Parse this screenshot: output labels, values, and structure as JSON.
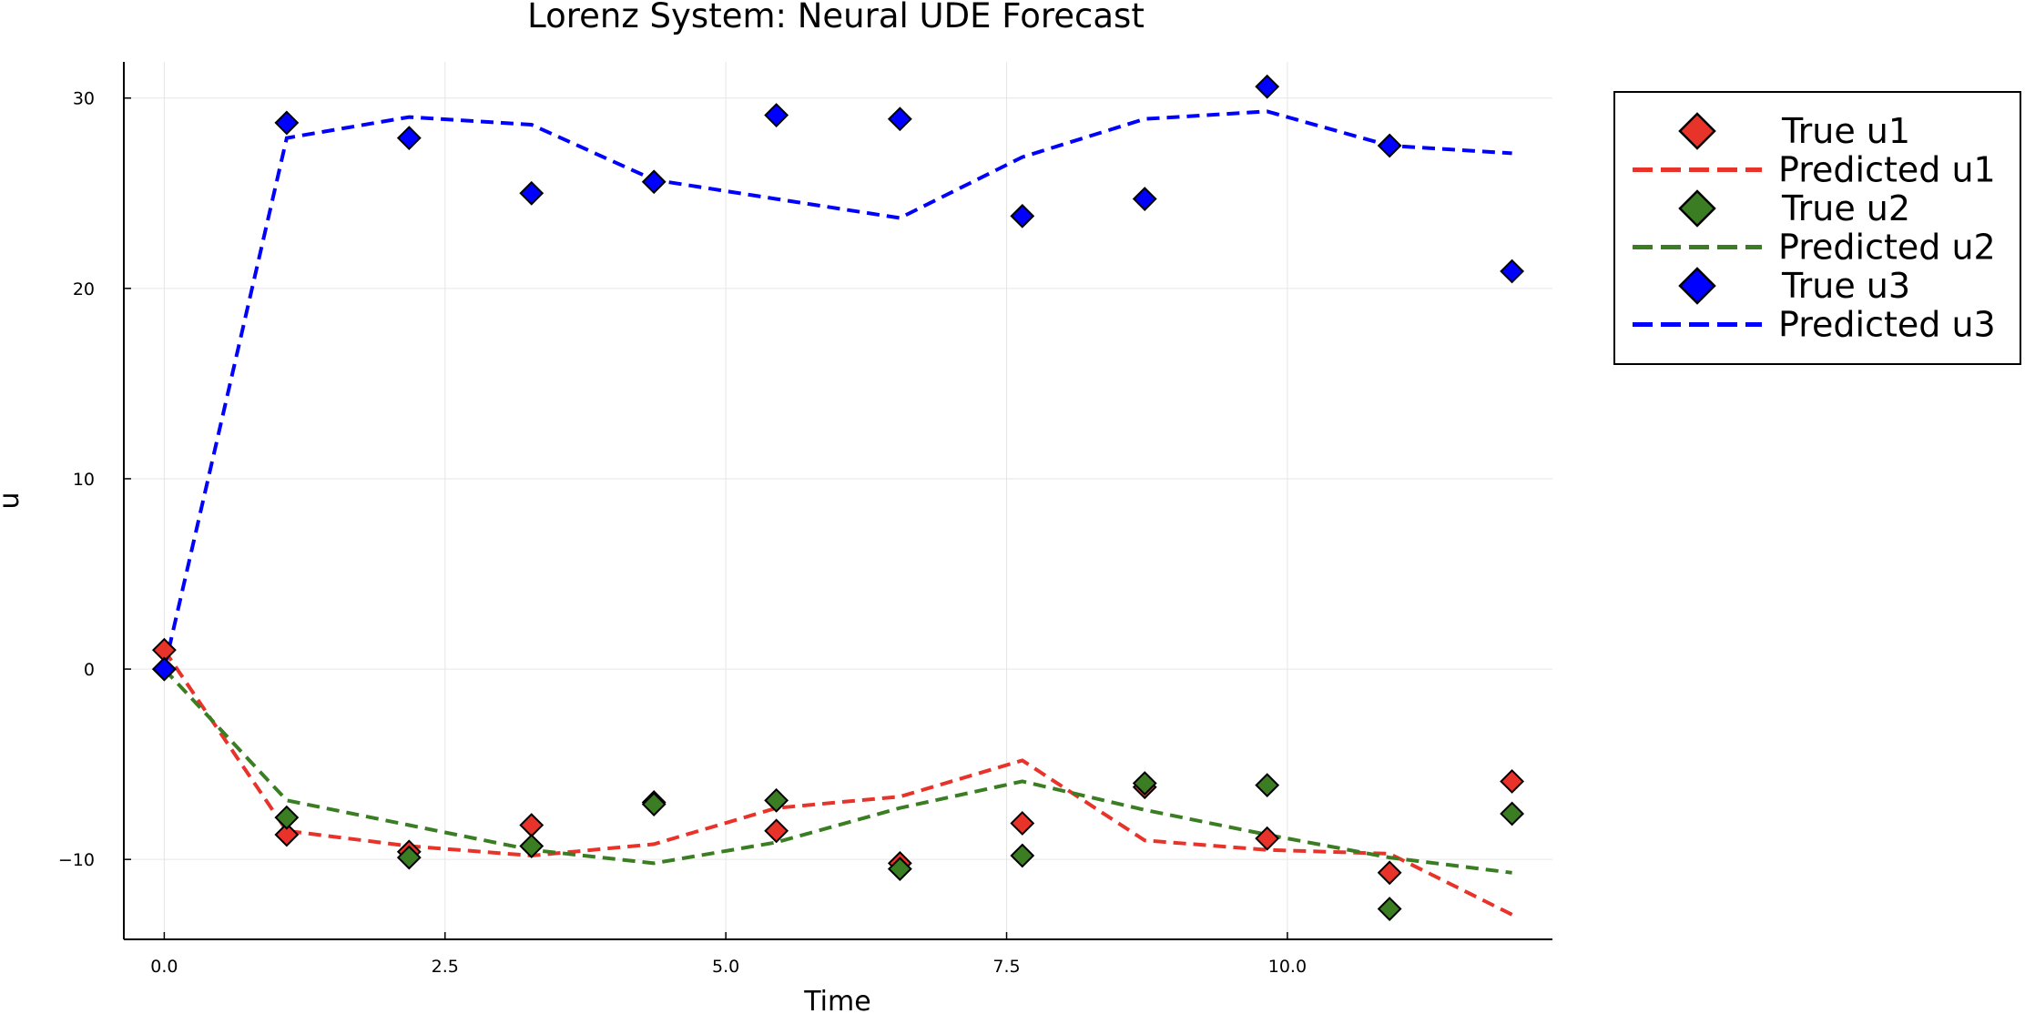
{
  "chart_data": {
    "type": "line",
    "title": "Lorenz System: Neural UDE Forecast",
    "xlabel": "Time",
    "ylabel": "u",
    "xlim": [
      -0.36,
      12.36
    ],
    "ylim": [
      -14.2,
      31.9
    ],
    "xticks": [
      0.0,
      2.5,
      5.0,
      7.5,
      10.0
    ],
    "xtick_labels": [
      "0.0",
      "2.5",
      "5.0",
      "7.5",
      "10.0"
    ],
    "yticks": [
      -10,
      0,
      10,
      20,
      30
    ],
    "ytick_labels": [
      "−10",
      "0",
      "10",
      "20",
      "30"
    ],
    "grid": true,
    "legend_position": "outer-top-right",
    "x": [
      0.0,
      1.09,
      2.18,
      3.27,
      4.36,
      5.45,
      6.55,
      7.64,
      8.73,
      9.82,
      10.91,
      12.0
    ],
    "series": [
      {
        "name": "True u1",
        "style": "markers",
        "color": "#e8332a",
        "values": [
          1.0,
          -8.7,
          -9.6,
          -8.2,
          -7.0,
          -8.5,
          -10.2,
          -8.1,
          -6.2,
          -8.9,
          -10.7,
          -5.9
        ]
      },
      {
        "name": "Predicted u1",
        "style": "dashed",
        "color": "#e8332a",
        "values": [
          1.0,
          -8.5,
          -9.3,
          -9.8,
          -9.2,
          -7.3,
          -6.7,
          -4.8,
          -9.0,
          -9.5,
          -9.7,
          -12.9
        ]
      },
      {
        "name": "True u2",
        "style": "markers",
        "color": "#3a7d22",
        "values": [
          0.0,
          -7.8,
          -9.9,
          -9.3,
          -7.1,
          -6.9,
          -10.5,
          -9.8,
          -6.0,
          -6.1,
          -12.6,
          -7.6
        ]
      },
      {
        "name": "Predicted u2",
        "style": "dashed",
        "color": "#3a7d22",
        "values": [
          0.0,
          -6.9,
          -8.2,
          -9.5,
          -10.2,
          -9.1,
          -7.3,
          -5.9,
          -7.4,
          -8.7,
          -9.9,
          -10.7
        ]
      },
      {
        "name": "True u3",
        "style": "markers",
        "color": "#0000ff",
        "values": [
          0.0,
          28.7,
          27.9,
          25.0,
          25.6,
          29.1,
          28.9,
          23.8,
          24.7,
          30.6,
          27.5,
          20.9
        ]
      },
      {
        "name": "Predicted u3",
        "style": "dashed",
        "color": "#0000ff",
        "values": [
          0.0,
          27.9,
          29.0,
          28.6,
          25.7,
          24.7,
          23.7,
          26.9,
          28.9,
          29.3,
          27.5,
          27.1
        ]
      }
    ]
  }
}
